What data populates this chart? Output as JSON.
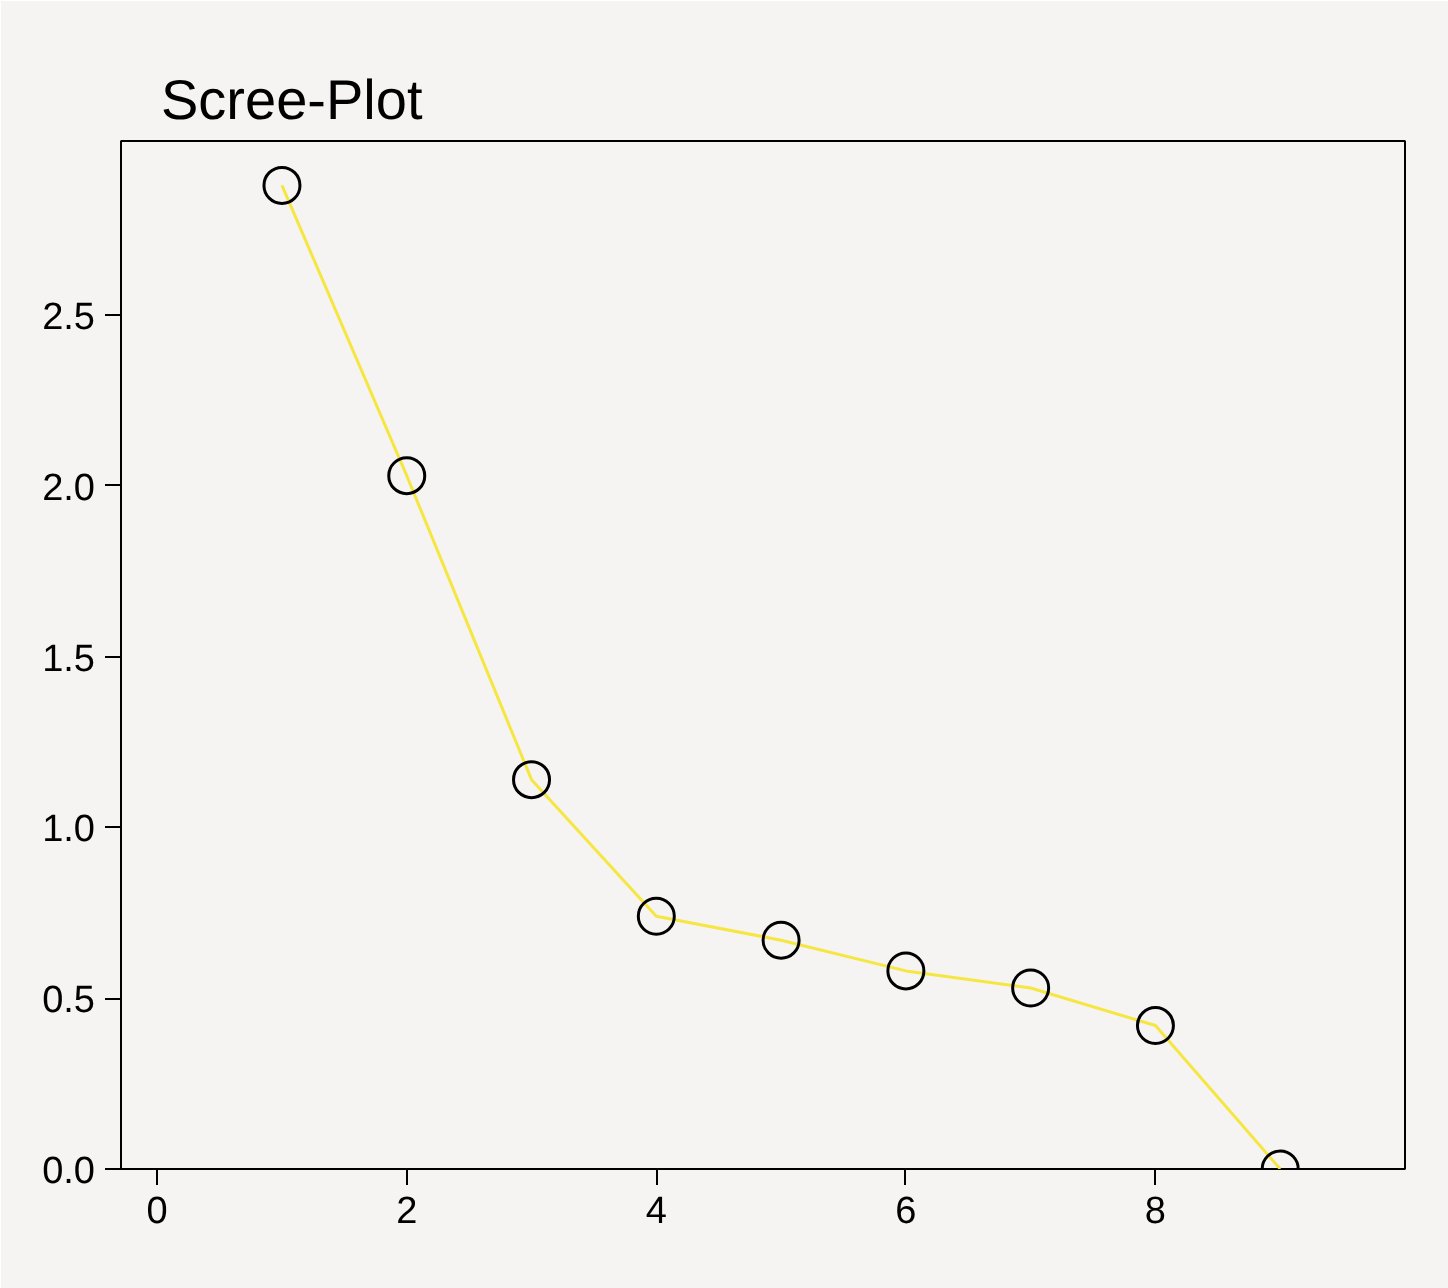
{
  "chart_data": {
    "type": "line",
    "title": "Scree-Plot",
    "x": [
      1,
      2,
      3,
      4,
      5,
      6,
      7,
      8,
      9
    ],
    "series": [
      {
        "color": "#f5e642",
        "values": [
          2.88,
          2.03,
          1.14,
          0.74,
          0.67,
          0.58,
          0.53,
          0.42,
          0.0
        ]
      }
    ],
    "xlim": [
      -0.29,
      10.0
    ],
    "ylim": [
      0,
      3.01
    ],
    "xticks": [
      0,
      2,
      4,
      6,
      8
    ],
    "yticks": [
      {
        "value": 0,
        "label": "0.0"
      },
      {
        "value": 0.5,
        "label": "0.5"
      },
      {
        "value": 1,
        "label": "1.0"
      },
      {
        "value": 1.5,
        "label": "1.5"
      },
      {
        "value": 2,
        "label": "2.0"
      },
      {
        "value": 2.5,
        "label": "2.5"
      }
    ],
    "marker": "circle",
    "grid": false
  }
}
